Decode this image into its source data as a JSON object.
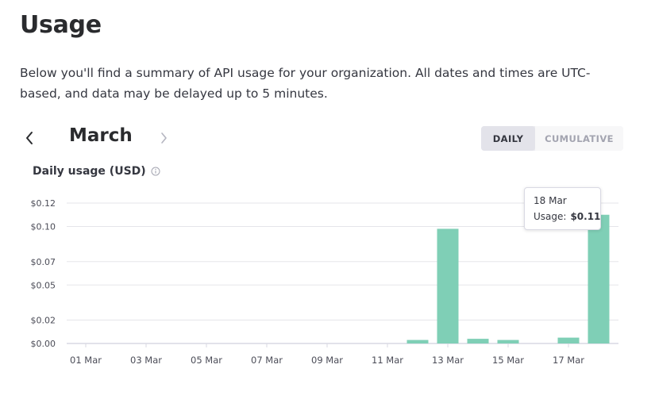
{
  "page": {
    "title": "Usage",
    "description": "Below you'll find a summary of API usage for your organization. All dates and times are UTC-based, and data may be delayed up to 5 minutes."
  },
  "month_nav": {
    "month": "March",
    "prev_icon": "chevron-left-icon",
    "next_icon": "chevron-right-icon"
  },
  "view_toggle": {
    "daily": "DAILY",
    "cumulative": "CUMULATIVE",
    "selected": "DAILY"
  },
  "chart_title": "Daily usage (USD)",
  "tooltip": {
    "date": "18 Mar",
    "label": "Usage:",
    "value": "$0.11"
  },
  "colors": {
    "bar": "#7fcfb6",
    "grid": "#e5e5ea",
    "axis": "#d9d9e3"
  },
  "chart_data": {
    "type": "bar",
    "title": "Daily usage (USD)",
    "xlabel": "",
    "ylabel": "",
    "categories": [
      "01 Mar",
      "02 Mar",
      "03 Mar",
      "04 Mar",
      "05 Mar",
      "06 Mar",
      "07 Mar",
      "08 Mar",
      "09 Mar",
      "10 Mar",
      "11 Mar",
      "12 Mar",
      "13 Mar",
      "14 Mar",
      "15 Mar",
      "16 Mar",
      "17 Mar",
      "18 Mar"
    ],
    "values": [
      0,
      0,
      0,
      0,
      0,
      0,
      0,
      0,
      0,
      0,
      0,
      0.003,
      0.098,
      0.004,
      0.003,
      0,
      0.005,
      0.11
    ],
    "x_tick_labels": [
      "01 Mar",
      "03 Mar",
      "05 Mar",
      "07 Mar",
      "09 Mar",
      "11 Mar",
      "13 Mar",
      "15 Mar",
      "17 Mar"
    ],
    "y_ticks": [
      0,
      0.02,
      0.05,
      0.07,
      0.1,
      0.12
    ],
    "y_tick_labels": [
      "$0.00",
      "$0.02",
      "$0.05",
      "$0.07",
      "$0.10",
      "$0.12"
    ],
    "ylim": [
      0,
      0.12
    ],
    "grid": true
  }
}
